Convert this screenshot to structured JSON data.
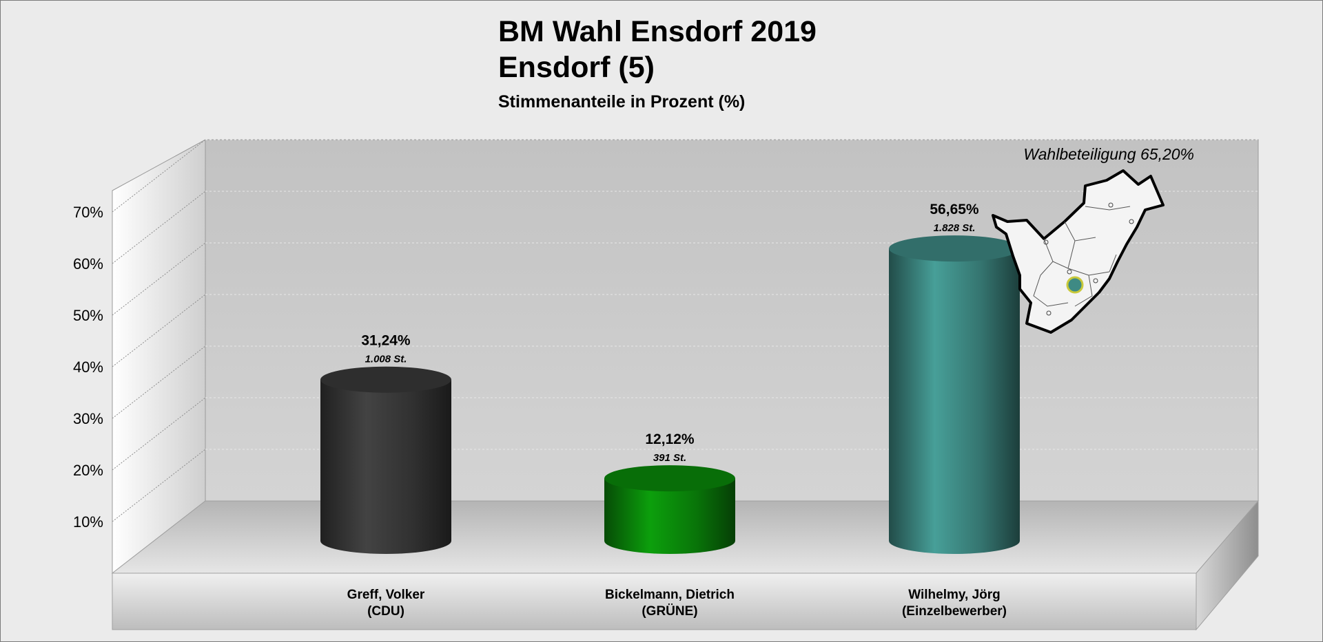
{
  "chart_data": {
    "type": "bar",
    "title": "BM Wahl Ensdorf 2019",
    "subtitle": "Ensdorf (5)",
    "subtitle2": "Stimmenanteile in Prozent (%)",
    "annotation": "Wahlbeteiligung 65,20%",
    "ylim": [
      0,
      70
    ],
    "yticks": [
      10,
      20,
      30,
      40,
      50,
      60,
      70
    ],
    "ytick_labels": [
      "10%",
      "20%",
      "30%",
      "40%",
      "50%",
      "60%",
      "70%"
    ],
    "grid": true,
    "categories": [
      {
        "name": "Greff, Volker",
        "party": "(CDU)",
        "value": 31.24,
        "value_label": "31,24%",
        "votes_label": "1.008 St.",
        "color": "#3a3a3a"
      },
      {
        "name": "Bickelmann, Dietrich",
        "party": "(GRÜNE)",
        "value": 12.12,
        "value_label": "12,12%",
        "votes_label": "391 St.",
        "color": "#0a8a0a"
      },
      {
        "name": "Wilhelmy, Jörg",
        "party": "(Einzelbewerber)",
        "value": 56.65,
        "value_label": "56,65%",
        "votes_label": "1.828 St.",
        "color": "#3e8a84"
      }
    ],
    "map_icon": "municipality-map-icon"
  }
}
